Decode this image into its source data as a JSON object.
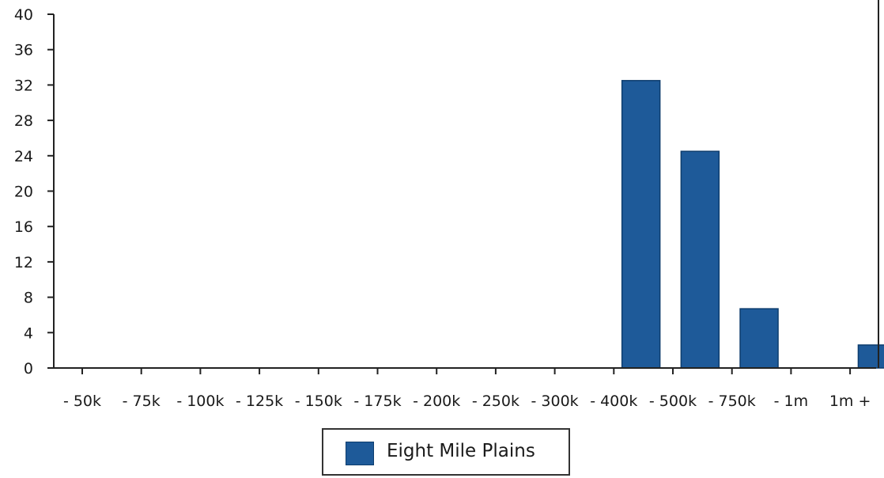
{
  "chart_data": {
    "type": "bar",
    "categories": [
      "- 50k",
      "- 75k",
      "- 100k",
      "- 125k",
      "- 150k",
      "- 175k",
      "- 200k",
      "- 250k",
      "- 300k",
      "- 400k",
      "- 500k",
      "- 750k",
      "- 1m",
      "1m +"
    ],
    "series": [
      {
        "name": "Eight Mile Plains",
        "values": [
          0,
          0,
          0,
          0,
          0,
          0,
          0,
          0,
          0,
          32.5,
          24.5,
          6.7,
          0,
          2.6
        ]
      }
    ],
    "ylim": [
      0,
      40
    ],
    "yticks": [
      0,
      4,
      8,
      12,
      16,
      20,
      24,
      28,
      32,
      36,
      40
    ],
    "grid": false,
    "legend_position": "bottom-center",
    "colors": {
      "bar": "#1e5a99",
      "bar_edge": "#0d3d6e",
      "axis": "#222222"
    }
  }
}
